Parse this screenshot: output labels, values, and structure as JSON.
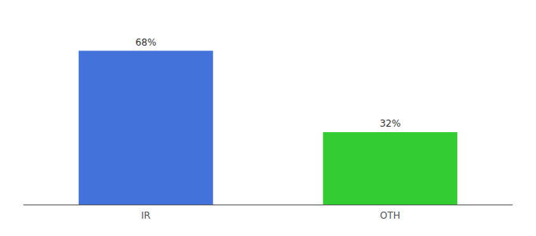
{
  "chart_data": {
    "type": "bar",
    "categories": [
      "IR",
      "OTH"
    ],
    "values": [
      68,
      32
    ],
    "value_labels": [
      "68%",
      "32%"
    ],
    "colors": [
      "#4472db",
      "#33cc33"
    ],
    "ylim": [
      0,
      80
    ],
    "data_labels": true,
    "grid": false,
    "tick_labels": "x"
  }
}
